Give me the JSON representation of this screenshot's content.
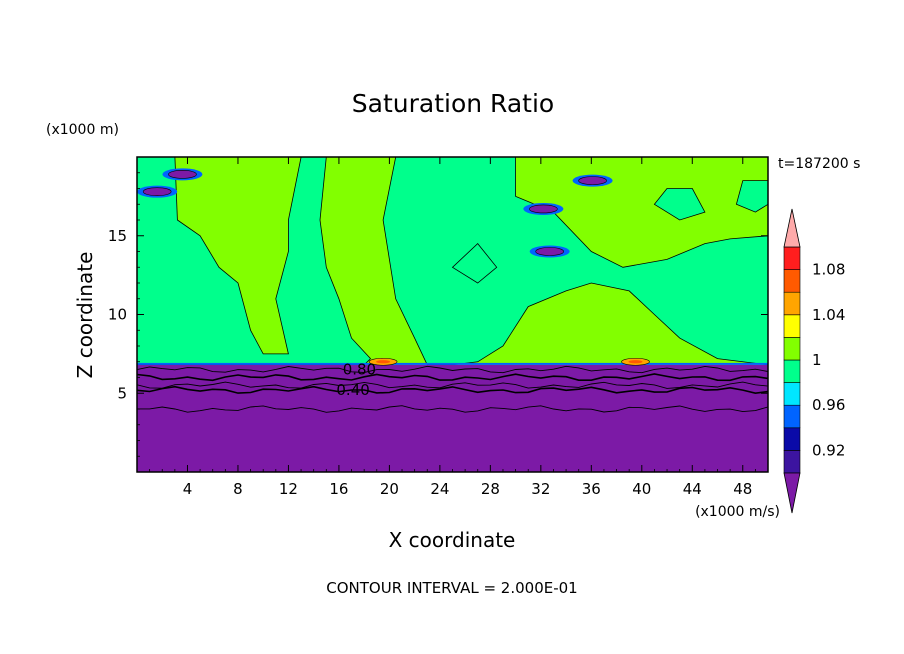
{
  "chart_data": {
    "type": "heatmap",
    "title": "Saturation Ratio",
    "xlabel": "X coordinate",
    "ylabel": "Z coordinate",
    "x_unit": "(x1000 m/s)",
    "y_unit": "(x1000 m)",
    "time_label": "t=187200 s",
    "footer": "CONTOUR INTERVAL = 2.000E-01",
    "xlim": [
      0,
      50
    ],
    "ylim": [
      0,
      20
    ],
    "x_ticks": [
      4,
      8,
      12,
      16,
      20,
      24,
      28,
      32,
      36,
      40,
      44,
      48
    ],
    "y_ticks": [
      5,
      10,
      15
    ],
    "colorbar": {
      "bounds": [
        0.9,
        0.92,
        0.94,
        0.96,
        0.98,
        1.0,
        1.02,
        1.04,
        1.06,
        1.08,
        1.1
      ],
      "labels": [
        "0.92",
        "0.96",
        "1",
        "1.04",
        "1.08"
      ],
      "label_values": [
        0.92,
        0.96,
        1.0,
        1.04,
        1.08
      ],
      "colors": [
        "#3c14a0",
        "#0a0aa8",
        "#0064ff",
        "#00e6ff",
        "#00ff8c",
        "#82ff00",
        "#ffff00",
        "#ffa500",
        "#ff5a00",
        "#ff1e1e"
      ],
      "below_color": "#7c1aa6",
      "above_color": "#ffaaaa"
    },
    "contour_labels": [
      {
        "text": "0.80",
        "x": 16.3,
        "y": 6.5
      },
      {
        "text": "0.40",
        "x": 15.8,
        "y": 5.2
      }
    ],
    "regions": {
      "dry_below_level": 6.8,
      "upper_fill": 1.0,
      "moist_fill": 0.98,
      "dry_fill": 0.8
    },
    "contour_lines_y": [
      6.5,
      6.0,
      5.5,
      5.2,
      4.0
    ],
    "hot_spots": [
      {
        "x": 19.5,
        "y": 7.0,
        "value": 1.05
      },
      {
        "x": 39.5,
        "y": 7.0,
        "value": 1.04
      }
    ],
    "dry_patches": [
      {
        "x": 1.6,
        "y": 17.8,
        "value": 0.92
      },
      {
        "x": 3.6,
        "y": 18.9,
        "value": 0.92
      },
      {
        "x": 32.7,
        "y": 14.0,
        "value": 0.91
      },
      {
        "x": 32.2,
        "y": 16.7,
        "value": 0.93
      },
      {
        "x": 36.1,
        "y": 18.5,
        "value": 0.95
      }
    ]
  }
}
